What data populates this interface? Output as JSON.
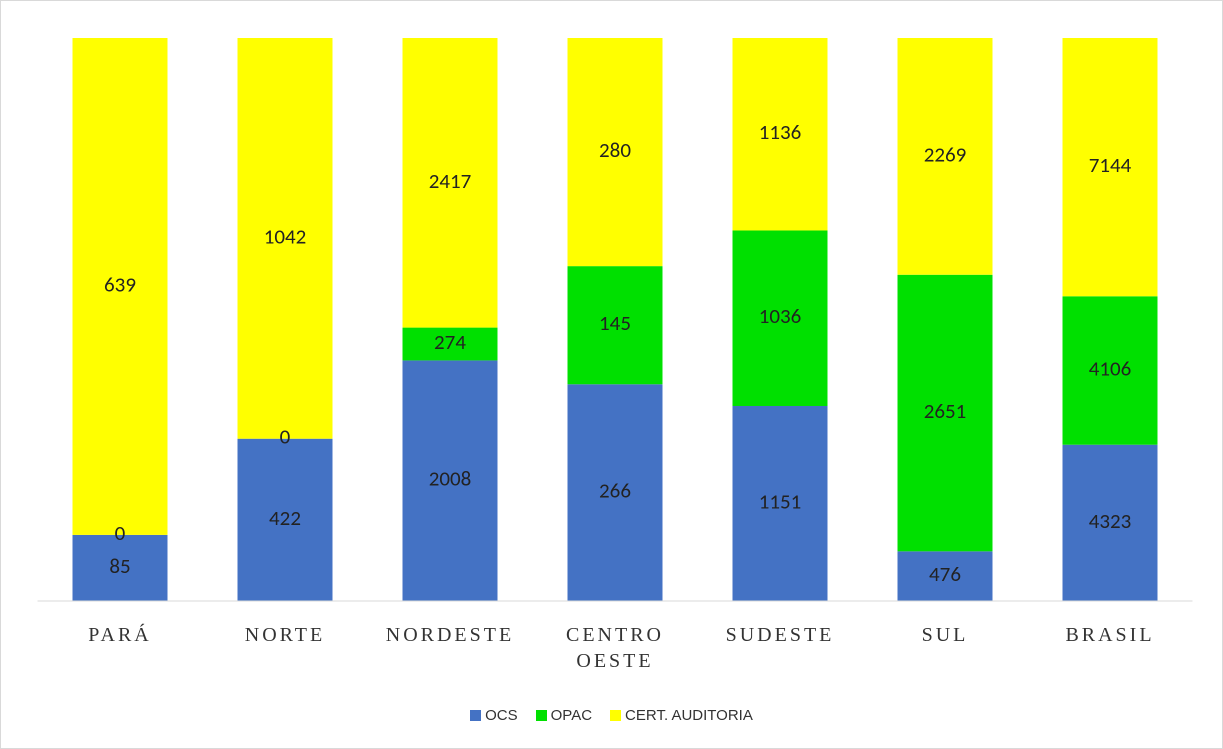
{
  "chart_data": {
    "type": "bar",
    "stacked": "percent",
    "categories": [
      "PARÁ",
      "NORTE",
      "NORDESTE",
      "CENTRO OESTE",
      "SUDESTE",
      "SUL",
      "BRASIL"
    ],
    "series": [
      {
        "name": "OCS",
        "color": "#4472c4",
        "values": [
          85,
          422,
          2008,
          266,
          1151,
          476,
          4323
        ]
      },
      {
        "name": "OPAC",
        "color": "#00e000",
        "values": [
          0,
          0,
          274,
          145,
          1036,
          2651,
          4106
        ]
      },
      {
        "name": "CERT. AUDITORIA",
        "color": "#ffff00",
        "values": [
          639,
          1042,
          2417,
          280,
          1136,
          2269,
          7144
        ]
      }
    ],
    "legend": "bottom"
  }
}
